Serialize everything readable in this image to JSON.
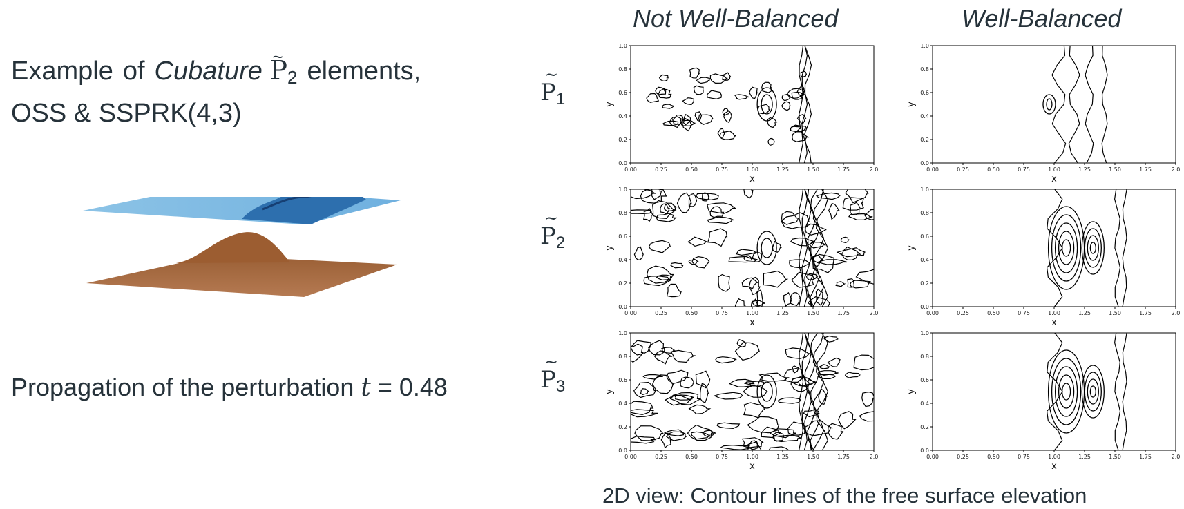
{
  "intro": {
    "line1_a": "Example",
    "line1_b": "of",
    "line1_italic": "Cubature",
    "line1_space": "P",
    "line1_sub": "2",
    "line1_c": "elements,",
    "line2": "OSS & SSPRK(4,3)"
  },
  "caption_left": {
    "text": "Propagation of the perturbation",
    "var": "t",
    "eq": " = 0.48"
  },
  "column_headers": [
    "Not Well-Balanced",
    "Well-Balanced"
  ],
  "row_labels": [
    {
      "symbol": "P",
      "sub": "1"
    },
    {
      "symbol": "P",
      "sub": "2"
    },
    {
      "symbol": "P",
      "sub": "3"
    }
  ],
  "caption_right": "2D view: Contour lines of the free surface elevation",
  "colors": {
    "water": "#7fb8de",
    "water_dark": "#1f5e9c",
    "bed": "#a76d45",
    "bed_dark": "#6e3f21",
    "contour": "#000000"
  },
  "axes": {
    "xlabel": "x",
    "ylabel": "y",
    "xticks": [
      "0.00",
      "0.25",
      "0.50",
      "0.75",
      "1.00",
      "1.25",
      "1.50",
      "1.75",
      "2.0"
    ],
    "yticks": [
      "0.0",
      "0.2",
      "0.4",
      "0.6",
      "0.8",
      "1.0"
    ]
  }
}
